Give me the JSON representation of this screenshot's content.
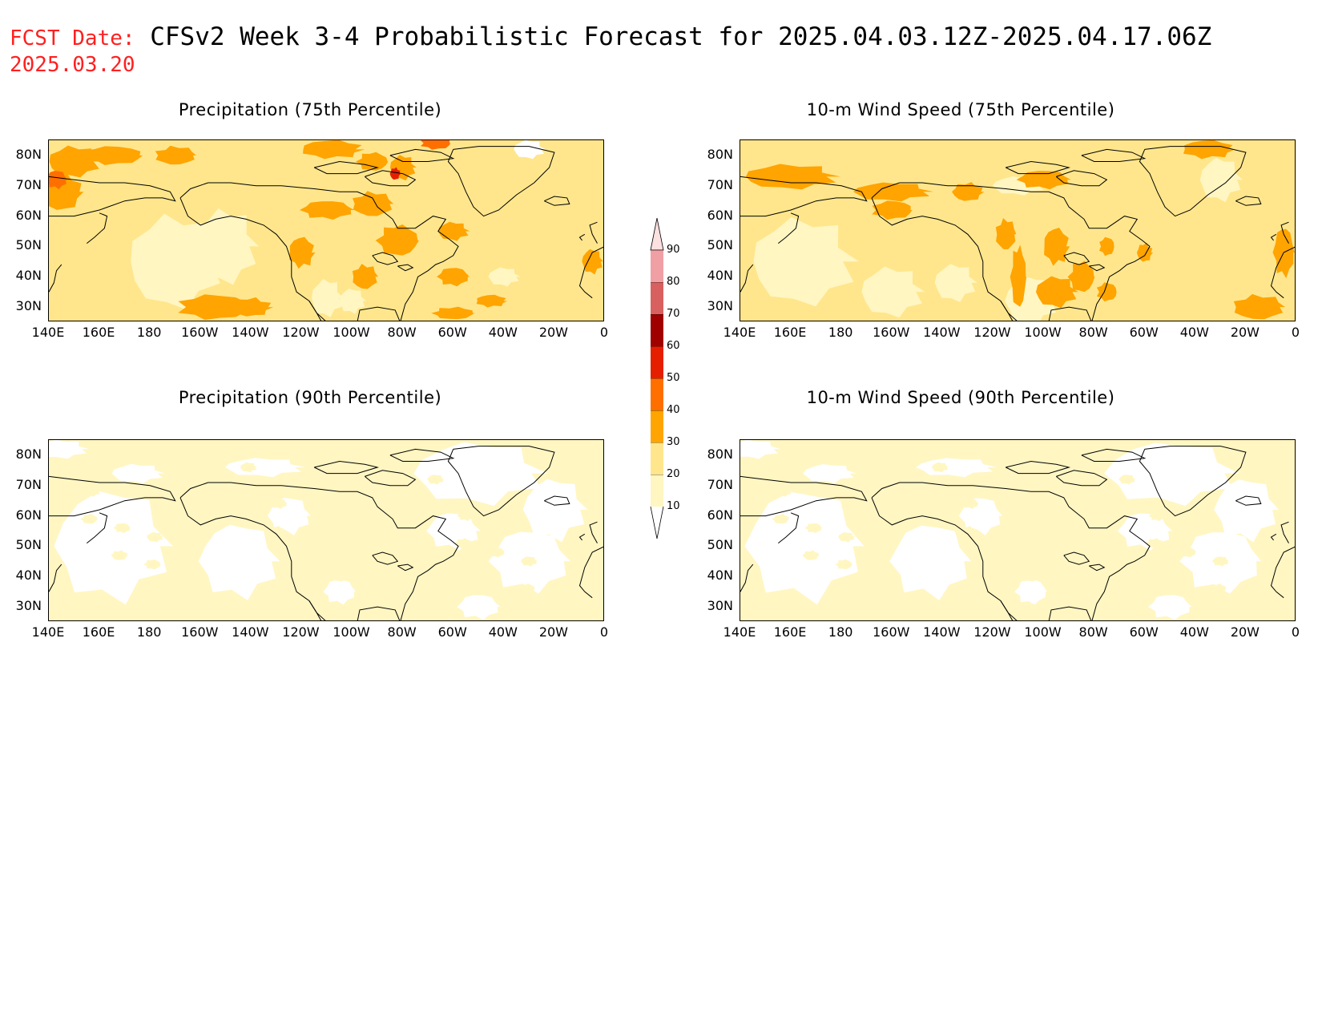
{
  "header": {
    "prefix": "FCST Date:",
    "title": "CFSv2 Week 3-4 Probabilistic Forecast for 2025.04.03.12Z-2025.04.17.06Z",
    "fcst_date": "2025.03.20"
  },
  "panels": [
    {
      "title": "Precipitation (75th Percentile)",
      "level": "high"
    },
    {
      "title": "10-m Wind Speed (75th Percentile)",
      "level": "med"
    },
    {
      "title": "Precipitation (90th Percentile)",
      "level": "low"
    },
    {
      "title": "10-m Wind Speed (90th Percentile)",
      "level": "low"
    }
  ],
  "axes": {
    "lat_labels": [
      "80N",
      "70N",
      "60N",
      "50N",
      "40N",
      "30N"
    ],
    "lon_labels": [
      "140E",
      "160E",
      "180",
      "160W",
      "140W",
      "120W",
      "100W",
      "80W",
      "60W",
      "40W",
      "20W",
      "0"
    ]
  },
  "colorbar": {
    "levels": [
      "10",
      "20",
      "30",
      "40",
      "50",
      "60",
      "70",
      "80",
      "90"
    ],
    "colors": [
      "#fff6c2",
      "#ffe68c",
      "#ffa400",
      "#ff6f00",
      "#e61e00",
      "#a00000",
      "#d8605e",
      "#f0a0a4",
      "#fde0e0"
    ]
  },
  "chart_data": [
    {
      "type": "heatmap",
      "title": "Precipitation (75th Percentile)",
      "xlim": [
        140,
        360
      ],
      "ylim": [
        25,
        85
      ]
    },
    {
      "type": "heatmap",
      "title": "10-m Wind Speed (75th Percentile)",
      "xlim": [
        140,
        360
      ],
      "ylim": [
        25,
        85
      ]
    },
    {
      "type": "heatmap",
      "title": "Precipitation (90th Percentile)",
      "xlim": [
        140,
        360
      ],
      "ylim": [
        25,
        85
      ]
    },
    {
      "type": "heatmap",
      "title": "10-m Wind Speed (90th Percentile)",
      "xlim": [
        140,
        360
      ],
      "ylim": [
        25,
        85
      ]
    }
  ]
}
